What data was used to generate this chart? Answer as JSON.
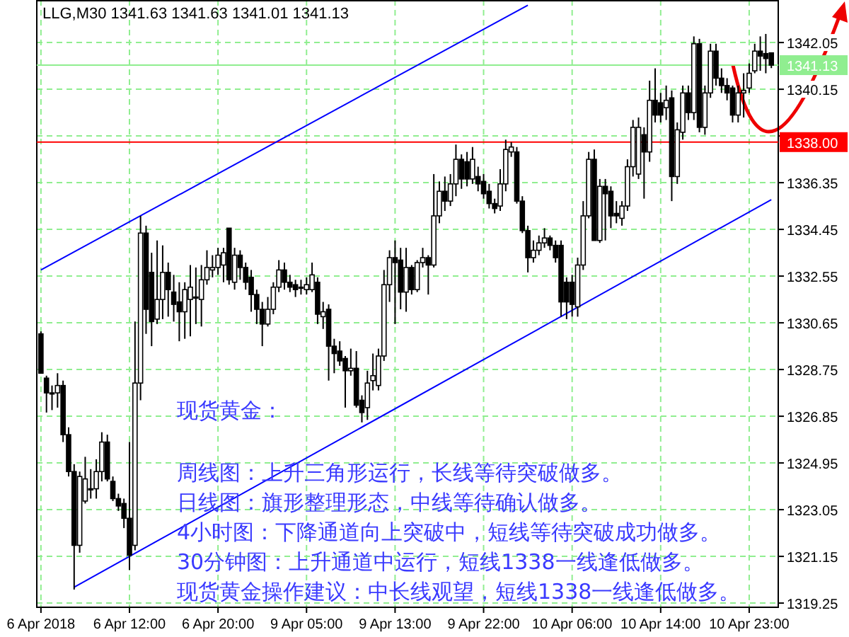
{
  "chart_data": {
    "type": "candlestick",
    "title": "LLG,M30  1341.63 1341.63 1341.01 1341.13",
    "categories": [
      "6 Apr 2018",
      null,
      null,
      null,
      null,
      null,
      null,
      null,
      null,
      null,
      null,
      null,
      null,
      null,
      null,
      null,
      "6 Apr 12:00",
      null,
      null,
      null,
      null,
      null,
      null,
      null,
      null,
      null,
      null,
      null,
      null,
      null,
      null,
      null,
      "6 Apr 20:00",
      null,
      null,
      null,
      null,
      null,
      null,
      null,
      null,
      null,
      null,
      null,
      null,
      null,
      null,
      null,
      "9 Apr 05:00",
      null,
      null,
      null,
      null,
      null,
      null,
      null,
      null,
      null,
      null,
      null,
      null,
      null,
      null,
      null,
      "9 Apr 13:00",
      null,
      null,
      null,
      null,
      null,
      null,
      null,
      null,
      null,
      null,
      null,
      null,
      null,
      null,
      null,
      "9 Apr 22:00",
      null,
      null,
      null,
      null,
      null,
      null,
      null,
      null,
      null,
      null,
      null,
      null,
      null,
      null,
      null,
      "10 Apr 06:00",
      null,
      null,
      null,
      null,
      null,
      null,
      null,
      null,
      null,
      null,
      null,
      null,
      null,
      null,
      null,
      "10 Apr 14:00",
      null,
      null,
      null,
      null,
      null,
      null,
      null,
      null,
      null,
      null,
      null,
      null,
      null,
      null,
      null,
      "10 Apr 23:00",
      null,
      null,
      null,
      null
    ],
    "ohlc": [
      [
        1330.2,
        1330.3,
        1328.6,
        1328.6
      ],
      [
        1328.4,
        1328.5,
        1327.0,
        1327.8
      ],
      [
        1327.8,
        1328.1,
        1327.1,
        1327.8
      ],
      [
        1327.8,
        1328.6,
        1327.2,
        1328.1
      ],
      [
        1328.1,
        1328.3,
        1325.8,
        1326.1
      ],
      [
        1326.1,
        1326.4,
        1324.4,
        1324.6
      ],
      [
        1324.6,
        1324.9,
        1319.8,
        1321.6
      ],
      [
        1321.6,
        1324.6,
        1321.3,
        1324.4
      ],
      [
        1323.4,
        1325.2,
        1323.3,
        1324.3
      ],
      [
        1323.9,
        1324.7,
        1323.5,
        1323.9
      ],
      [
        1323.9,
        1325.1,
        1323.5,
        1324.6
      ],
      [
        1324.6,
        1326.2,
        1324.2,
        1325.8
      ],
      [
        1325.8,
        1326.1,
        1324.2,
        1324.3
      ],
      [
        1324.2,
        1324.4,
        1323.4,
        1323.5
      ],
      [
        1323.5,
        1323.7,
        1323.0,
        1323.2
      ],
      [
        1323.3,
        1323.5,
        1322.3,
        1322.7
      ],
      [
        1322.7,
        1325.8,
        1320.6,
        1321.2
      ],
      [
        1321.6,
        1330.7,
        1321.4,
        1328.2
      ],
      [
        1328.2,
        1335.0,
        1327.5,
        1334.3
      ],
      [
        1334.3,
        1334.6,
        1330.2,
        1331.2
      ],
      [
        1332.7,
        1333.5,
        1329.7,
        1330.7
      ],
      [
        1330.8,
        1334.0,
        1330.6,
        1331.6
      ],
      [
        1331.6,
        1333.8,
        1330.8,
        1332.7
      ],
      [
        1332.7,
        1333.1,
        1330.9,
        1332.0
      ],
      [
        1331.9,
        1332.6,
        1330.7,
        1331.4
      ],
      [
        1331.5,
        1332.3,
        1329.9,
        1331.1
      ],
      [
        1331.1,
        1332.3,
        1330.0,
        1332.0
      ],
      [
        1331.6,
        1333.0,
        1330.1,
        1332.1
      ],
      [
        1331.7,
        1332.9,
        1330.6,
        1331.7
      ],
      [
        1331.6,
        1333.0,
        1330.5,
        1332.4
      ],
      [
        1332.4,
        1333.6,
        1332.2,
        1332.9
      ],
      [
        1332.8,
        1333.4,
        1332.5,
        1332.9
      ],
      [
        1332.9,
        1333.7,
        1332.6,
        1333.4
      ],
      [
        1333.0,
        1333.7,
        1332.3,
        1333.5
      ],
      [
        1334.5,
        1334.5,
        1332.2,
        1332.4
      ],
      [
        1332.3,
        1333.7,
        1332.0,
        1333.4
      ],
      [
        1333.4,
        1333.6,
        1332.4,
        1332.9
      ],
      [
        1332.9,
        1333.1,
        1332.0,
        1332.3
      ],
      [
        1332.5,
        1332.8,
        1331.1,
        1331.8
      ],
      [
        1331.8,
        1332.0,
        1330.6,
        1331.2
      ],
      [
        1331.2,
        1331.5,
        1329.7,
        1330.6
      ],
      [
        1330.6,
        1331.7,
        1330.5,
        1331.2
      ],
      [
        1331.2,
        1332.3,
        1331.0,
        1332.1
      ],
      [
        1332.1,
        1333.2,
        1331.9,
        1332.8
      ],
      [
        1332.8,
        1333.1,
        1332.0,
        1332.3
      ],
      [
        1332.3,
        1332.6,
        1331.9,
        1332.1
      ],
      [
        1332.2,
        1332.4,
        1331.7,
        1332.0
      ],
      [
        1332.1,
        1332.4,
        1331.8,
        1332.1
      ],
      [
        1332.0,
        1332.5,
        1331.8,
        1332.2
      ],
      [
        1332.0,
        1333.1,
        1331.9,
        1332.6
      ],
      [
        1332.3,
        1332.5,
        1330.6,
        1331.0
      ],
      [
        1330.9,
        1331.5,
        1330.4,
        1331.1
      ],
      [
        1331.2,
        1331.4,
        1328.3,
        1329.7
      ],
      [
        1329.7,
        1330.0,
        1328.6,
        1329.4
      ],
      [
        1329.5,
        1329.9,
        1328.9,
        1329.1
      ],
      [
        1329.2,
        1329.3,
        1327.2,
        1328.7
      ],
      [
        1328.7,
        1329.6,
        1328.5,
        1328.8
      ],
      [
        1328.8,
        1329.5,
        1327.2,
        1327.3
      ],
      [
        1327.5,
        1327.7,
        1326.6,
        1327.0
      ],
      [
        1327.2,
        1328.7,
        1326.7,
        1328.2
      ],
      [
        1328.3,
        1329.4,
        1327.9,
        1328.5
      ],
      [
        1328.1,
        1329.6,
        1327.9,
        1329.3
      ],
      [
        1329.3,
        1332.8,
        1329.1,
        1332.2
      ],
      [
        1332.2,
        1333.6,
        1331.5,
        1333.3
      ],
      [
        1333.3,
        1334.0,
        1330.6,
        1333.1
      ],
      [
        1333.2,
        1333.7,
        1331.2,
        1331.9
      ],
      [
        1331.9,
        1333.7,
        1331.1,
        1332.9
      ],
      [
        1332.9,
        1333.0,
        1331.8,
        1332.0
      ],
      [
        1332.0,
        1333.2,
        1331.9,
        1333.1
      ],
      [
        1333.1,
        1333.7,
        1332.9,
        1333.3
      ],
      [
        1333.3,
        1333.4,
        1331.8,
        1333.0
      ],
      [
        1333.0,
        1336.7,
        1332.9,
        1335.0
      ],
      [
        1335.0,
        1336.4,
        1334.7,
        1336.0
      ],
      [
        1336.0,
        1336.6,
        1335.2,
        1335.6
      ],
      [
        1335.6,
        1336.7,
        1335.4,
        1336.3
      ],
      [
        1336.3,
        1337.9,
        1335.8,
        1337.3
      ],
      [
        1337.3,
        1337.5,
        1336.1,
        1336.5
      ],
      [
        1337.2,
        1337.6,
        1336.2,
        1336.5
      ],
      [
        1336.5,
        1337.8,
        1336.3,
        1337.3
      ],
      [
        1336.6,
        1337.0,
        1336.0,
        1336.3
      ],
      [
        1336.4,
        1336.7,
        1335.7,
        1335.9
      ],
      [
        1336.0,
        1336.3,
        1335.3,
        1335.5
      ],
      [
        1335.5,
        1335.7,
        1335.1,
        1335.3
      ],
      [
        1335.4,
        1336.9,
        1335.2,
        1336.3
      ],
      [
        1336.3,
        1338.1,
        1336.0,
        1337.7
      ],
      [
        1337.6,
        1338.0,
        1337.4,
        1337.8
      ],
      [
        1337.6,
        1337.8,
        1335.5,
        1335.6
      ],
      [
        1335.6,
        1335.8,
        1334.3,
        1334.4
      ],
      [
        1334.4,
        1334.6,
        1332.7,
        1333.3
      ],
      [
        1333.3,
        1334.0,
        1333.1,
        1333.6
      ],
      [
        1333.6,
        1334.2,
        1333.4,
        1333.9
      ],
      [
        1333.9,
        1334.5,
        1333.7,
        1334.1
      ],
      [
        1334.1,
        1334.2,
        1333.6,
        1333.8
      ],
      [
        1333.8,
        1334.0,
        1333.1,
        1333.3
      ],
      [
        1333.8,
        1334.0,
        1330.9,
        1331.5
      ],
      [
        1332.3,
        1332.5,
        1330.8,
        1331.5
      ],
      [
        1332.3,
        1332.6,
        1330.9,
        1331.4
      ],
      [
        1331.3,
        1333.3,
        1330.9,
        1333.0
      ],
      [
        1333.0,
        1335.6,
        1332.8,
        1335.0
      ],
      [
        1335.0,
        1337.6,
        1334.9,
        1337.3
      ],
      [
        1337.3,
        1337.7,
        1334.0,
        1334.0
      ],
      [
        1334.0,
        1336.5,
        1333.9,
        1336.2
      ],
      [
        1336.2,
        1336.5,
        1334.0,
        1335.9
      ],
      [
        1336.0,
        1336.2,
        1334.5,
        1335.0
      ],
      [
        1335.1,
        1335.6,
        1334.7,
        1335.0
      ],
      [
        1334.9,
        1335.6,
        1334.6,
        1335.4
      ],
      [
        1335.4,
        1337.3,
        1335.2,
        1337.0
      ],
      [
        1337.0,
        1338.9,
        1336.6,
        1338.6
      ],
      [
        1336.7,
        1339.0,
        1336.5,
        1338.6
      ],
      [
        1338.3,
        1338.6,
        1335.7,
        1337.6
      ],
      [
        1337.6,
        1340.5,
        1337.2,
        1339.7
      ],
      [
        1339.7,
        1341.0,
        1338.8,
        1339.1
      ],
      [
        1339.6,
        1340.0,
        1338.8,
        1339.1
      ],
      [
        1339.4,
        1340.3,
        1338.9,
        1339.7
      ],
      [
        1339.8,
        1340.1,
        1335.6,
        1336.6
      ],
      [
        1336.6,
        1338.8,
        1336.3,
        1338.5
      ],
      [
        1338.4,
        1340.3,
        1338.1,
        1340.0
      ],
      [
        1340.0,
        1340.3,
        1338.9,
        1339.2
      ],
      [
        1339.2,
        1342.3,
        1338.9,
        1342.0
      ],
      [
        1342.0,
        1342.2,
        1338.4,
        1338.6
      ],
      [
        1338.6,
        1340.3,
        1338.3,
        1340.0
      ],
      [
        1340.0,
        1342.0,
        1339.8,
        1341.7
      ],
      [
        1341.7,
        1342.0,
        1340.3,
        1340.6
      ],
      [
        1340.6,
        1341.0,
        1340.0,
        1340.3
      ],
      [
        1340.3,
        1340.6,
        1339.7,
        1340.0
      ],
      [
        1340.2,
        1340.3,
        1338.8,
        1339.1
      ],
      [
        1339.1,
        1340.3,
        1338.8,
        1340.0
      ],
      [
        1340.0,
        1340.8,
        1339.0,
        1340.1
      ],
      [
        1340.2,
        1341.2,
        1340.0,
        1340.8
      ],
      [
        1340.9,
        1342.0,
        1340.8,
        1341.7
      ],
      [
        1341.7,
        1342.3,
        1340.9,
        1341.5
      ],
      [
        1341.6,
        1342.4,
        1340.8,
        1341.4
      ],
      [
        1341.63,
        1341.63,
        1341.01,
        1341.13
      ]
    ],
    "series": [
      {
        "type": "line",
        "color": "#0000ff",
        "values": [
          1332.8,
          null,
          null,
          null,
          null,
          null,
          null,
          null,
          null,
          null,
          null,
          null,
          null,
          null,
          null,
          null,
          null,
          null,
          null,
          null,
          null,
          null,
          null,
          null,
          null,
          null,
          null,
          null,
          null,
          null,
          null,
          null,
          null,
          null,
          null,
          null,
          null,
          null,
          null,
          null,
          null,
          null,
          null,
          null,
          null,
          null,
          null,
          null,
          null,
          null,
          null,
          null,
          null,
          null,
          null,
          null,
          null,
          null,
          null,
          null,
          null,
          null,
          null,
          null,
          null,
          null,
          null,
          null,
          null,
          null,
          null,
          null,
          null,
          null,
          null,
          null,
          null,
          null,
          null,
          null,
          null,
          null,
          null,
          null,
          null,
          null,
          null,
          null,
          1343.57,
          null,
          null,
          null,
          null,
          null,
          null,
          null,
          null,
          null,
          null,
          null,
          null,
          null,
          null,
          null,
          null,
          null,
          null,
          null,
          null,
          null,
          null,
          null,
          null,
          null,
          null,
          null,
          null,
          null,
          null,
          null,
          null,
          null,
          null,
          null,
          null,
          null,
          null,
          null,
          null,
          null,
          null,
          null,
          null
        ]
      },
      {
        "type": "line",
        "color": "#0000ff",
        "values": [
          null,
          null,
          null,
          null,
          null,
          null,
          1319.9,
          null,
          null,
          null,
          null,
          null,
          null,
          null,
          null,
          null,
          null,
          null,
          null,
          null,
          null,
          null,
          null,
          null,
          null,
          null,
          null,
          null,
          null,
          null,
          null,
          null,
          null,
          null,
          null,
          null,
          null,
          null,
          null,
          null,
          null,
          null,
          null,
          null,
          null,
          null,
          null,
          null,
          null,
          null,
          null,
          null,
          null,
          null,
          null,
          null,
          null,
          null,
          null,
          null,
          null,
          null,
          null,
          null,
          null,
          null,
          null,
          null,
          null,
          null,
          null,
          null,
          null,
          null,
          null,
          null,
          null,
          null,
          null,
          null,
          null,
          null,
          null,
          null,
          null,
          null,
          null,
          null,
          null,
          null,
          null,
          null,
          null,
          null,
          null,
          null,
          null,
          null,
          null,
          null,
          null,
          null,
          null,
          null,
          null,
          null,
          null,
          null,
          null,
          null,
          null,
          null,
          null,
          null,
          null,
          null,
          null,
          null,
          null,
          null,
          null,
          null,
          null,
          null,
          null,
          null,
          null,
          null,
          null,
          null,
          null,
          null,
          1335.66
        ]
      }
    ],
    "ylim": [
      1319.08,
      1343.78
    ],
    "yticks": [
      1342.05,
      1340.15,
      {
        "value": 1338.25,
        "label": null
      },
      1336.35,
      1334.45,
      1332.55,
      1330.65,
      1328.75,
      1326.85,
      1324.95,
      1323.05,
      1321.15,
      1319.25
    ],
    "grid": true,
    "ref_lines": [
      {
        "axis": "y",
        "value": 1338.0,
        "label": "1338.00",
        "color": "#ff0000"
      },
      {
        "axis": "y",
        "value": 1341.13,
        "label": "1341.13",
        "color": "#90ee90"
      }
    ],
    "annotations": [
      "现货黄金：",
      "周线图：上升三角形运行，长线等待突破做多。",
      "日线图：旗形整理形态，中线等待确认做多。",
      "4小时图：下降通道向上突破中，短线等待突破成功做多。",
      "30分钟图：上升通道中运行，短线1338一线逢低做多。",
      "现货黄金操作建议：中长线观望，短线1338一线逢低做多。"
    ]
  }
}
